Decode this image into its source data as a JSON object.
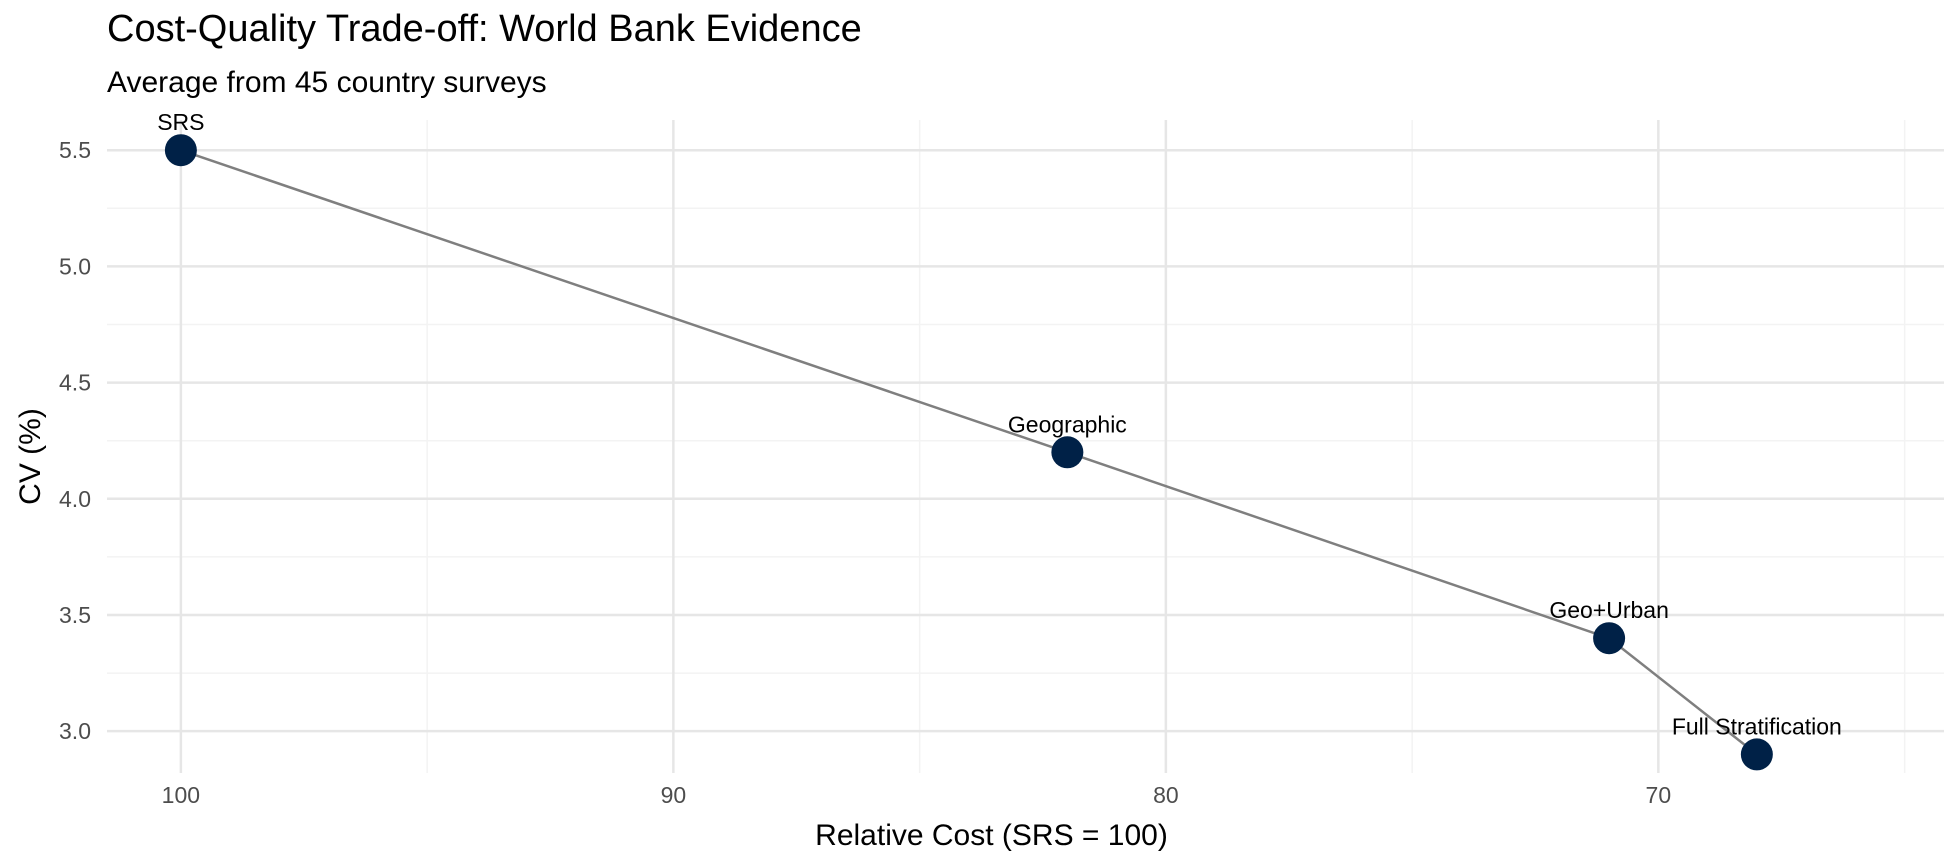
{
  "chart_data": {
    "type": "line",
    "title": "Cost-Quality Trade-off: World Bank Evidence",
    "subtitle": "Average from 45 country surveys",
    "xlabel": "Relative Cost (SRS = 100)",
    "ylabel": "CV (%)",
    "x_reversed": true,
    "xlim": [
      101.5,
      64.2
    ],
    "ylim": [
      2.82,
      5.63
    ],
    "x_ticks": [
      100,
      90,
      80,
      70
    ],
    "x_tick_labels": [
      "100",
      "90",
      "80",
      "70"
    ],
    "y_ticks": [
      3.0,
      3.5,
      4.0,
      4.5,
      5.0,
      5.5
    ],
    "y_tick_labels": [
      "3.0",
      "3.5",
      "4.0",
      "4.5",
      "5.0",
      "5.5"
    ],
    "grid": true,
    "legend": "none",
    "points": [
      {
        "label": "SRS",
        "x": 100,
        "y": 5.5
      },
      {
        "label": "Geographic",
        "x": 82,
        "y": 4.2
      },
      {
        "label": "Geo+Urban",
        "x": 71,
        "y": 3.4
      },
      {
        "label": "Full Stratification",
        "x": 68,
        "y": 2.9
      }
    ],
    "colors": {
      "line": "#7f7f7f",
      "point": "#002147",
      "grid_major": "#e6e6e6",
      "grid_minor": "#f3f3f3"
    }
  }
}
